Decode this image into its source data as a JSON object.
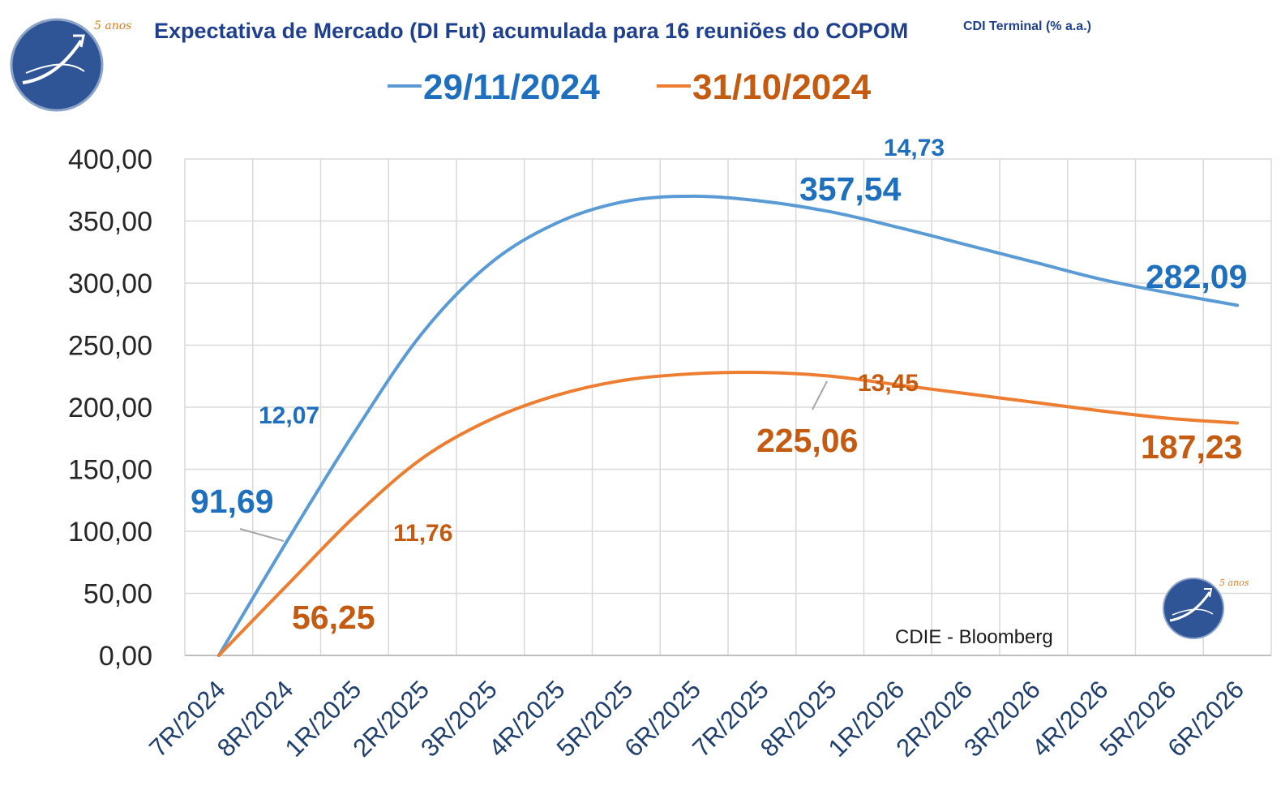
{
  "chart_data": {
    "type": "line",
    "title": "Expectativa de Mercado (DI Fut) acumulada para 16 reuniões do COPOM",
    "subtitle": "CDI Terminal (% a.a.)",
    "source": "CDIE - Bloomberg",
    "logo_text": "5 anos",
    "ylim": [
      0,
      400
    ],
    "yticks": [
      "0,00",
      "50,00",
      "100,00",
      "150,00",
      "200,00",
      "250,00",
      "300,00",
      "350,00",
      "400,00"
    ],
    "categories": [
      "7R/2024",
      "8R/2024",
      "1R/2025",
      "2R/2025",
      "3R/2025",
      "4R/2025",
      "5R/2025",
      "6R/2025",
      "7R/2025",
      "8R/2025",
      "1R/2026",
      "2R/2026",
      "3R/2026",
      "4R/2026",
      "5R/2026",
      "6R/2026"
    ],
    "legend_position": "top",
    "grid": true,
    "series": [
      {
        "name": "29/11/2024",
        "color": "#5b9bd5",
        "label_color": "#1f6fbf",
        "values": [
          0,
          91.69,
          180,
          260,
          316,
          349,
          366,
          370,
          366,
          357.54,
          345,
          331,
          317,
          303,
          292,
          282.09
        ]
      },
      {
        "name": "31/10/2024",
        "color": "#ed7d31",
        "label_color": "#c55a11",
        "values": [
          0,
          56.25,
          112,
          159,
          190,
          210,
          222,
          227,
          228,
          225.06,
          218,
          211,
          204,
          197,
          191,
          187.23
        ]
      }
    ],
    "annotations": [
      {
        "text": "91,69",
        "color": "#1f6fbf",
        "size": "big"
      },
      {
        "text": "12,07",
        "color": "#1f6fbf",
        "size": "small"
      },
      {
        "text": "357,54",
        "color": "#1f6fbf",
        "size": "big"
      },
      {
        "text": "14,73",
        "color": "#1f6fbf",
        "size": "small"
      },
      {
        "text": "282,09",
        "color": "#1f6fbf",
        "size": "big"
      },
      {
        "text": "56,25",
        "color": "#c55a11",
        "size": "big"
      },
      {
        "text": "11,76",
        "color": "#c55a11",
        "size": "small"
      },
      {
        "text": "225,06",
        "color": "#c55a11",
        "size": "big"
      },
      {
        "text": "13,45",
        "color": "#c55a11",
        "size": "small"
      },
      {
        "text": "187,23",
        "color": "#c55a11",
        "size": "big"
      }
    ]
  }
}
